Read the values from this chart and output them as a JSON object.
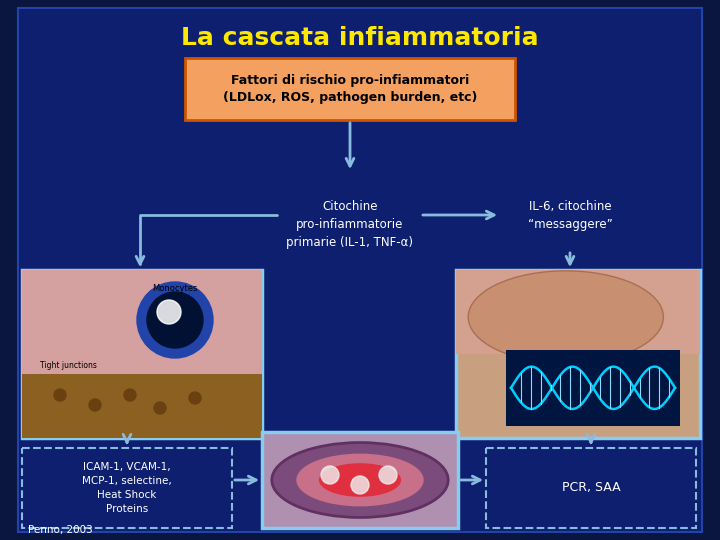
{
  "title": "La cascata infiammatoria",
  "title_color": "#FFE800",
  "bg_color": "#0a1540",
  "slide_bg": "#0d1f6e",
  "box1_text": "Fattori di rischio pro-infiammatori\n(LDLox, ROS, pathogen burden, etc)",
  "box1_bg": "#F4A060",
  "box1_border": "#CC5500",
  "box2_text": "Citochine\npro-infiammatorie\nprimarie (IL-1, TNF-α)",
  "box2_color": "white",
  "box3_text": "IL-6, citochine\n“messaggere”",
  "box3_color": "white",
  "box4_text": "ICAM-1, VCAM-1,\nMCP-1, selectine,\nHeat Shock\nProteins",
  "box4_color": "white",
  "box5_text": "PCR, SAA",
  "box5_color": "white",
  "arrow_color": "#88BBDD",
  "dashed_border_color": "#88BBDD",
  "solid_border_color": "#88CCEE",
  "penno_text": "Penno, 2003",
  "penno_color": "white",
  "outer_border_color": "#2244AA"
}
